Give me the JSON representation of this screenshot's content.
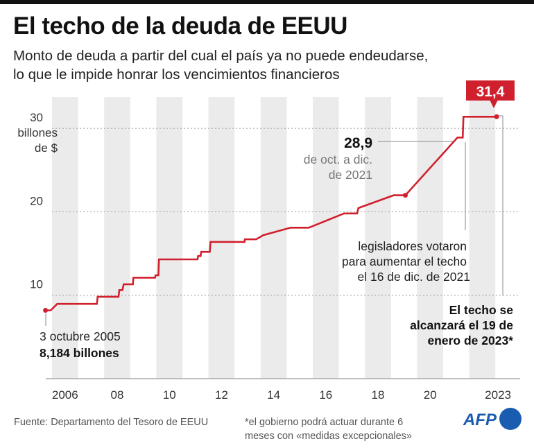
{
  "header": {
    "title": "El techo de la deuda de EEUU",
    "subtitle_line1": "Monto de deuda a partir del cual el país ya no puede endeudarse,",
    "subtitle_line2": "lo que le impide honrar los vencimientos financieros"
  },
  "chart_data": {
    "type": "line",
    "ylabel_line1": "billones",
    "ylabel_line2": "de $",
    "ylim": [
      0,
      31.4
    ],
    "xlim": [
      2005.75,
      2023.05
    ],
    "y_ticks": [
      {
        "value": 10,
        "label": "10"
      },
      {
        "value": 20,
        "label": "20"
      },
      {
        "value": 30,
        "label": "30"
      }
    ],
    "x_ticks": [
      {
        "value": 2006.5,
        "label": "2006"
      },
      {
        "value": 2008.5,
        "label": "08"
      },
      {
        "value": 2010.5,
        "label": "10"
      },
      {
        "value": 2012.5,
        "label": "12"
      },
      {
        "value": 2014.5,
        "label": "14"
      },
      {
        "value": 2016.5,
        "label": "16"
      },
      {
        "value": 2018.5,
        "label": "18"
      },
      {
        "value": 2020.5,
        "label": "20"
      },
      {
        "value": 2023.05,
        "label": "2023"
      }
    ],
    "shaded_years": [
      2006,
      2008,
      2010,
      2012,
      2014,
      2016,
      2018,
      2020,
      2022
    ],
    "grid": "horizontal dotted",
    "line_color": "#d0202e",
    "points": [
      [
        2005.75,
        8.184
      ],
      [
        2005.95,
        8.184
      ],
      [
        2006.2,
        8.965
      ],
      [
        2007.72,
        8.965
      ],
      [
        2007.75,
        9.815
      ],
      [
        2008.55,
        9.815
      ],
      [
        2008.58,
        10.615
      ],
      [
        2008.7,
        10.615
      ],
      [
        2008.75,
        11.315
      ],
      [
        2009.1,
        11.315
      ],
      [
        2009.12,
        12.104
      ],
      [
        2009.95,
        12.104
      ],
      [
        2009.97,
        12.394
      ],
      [
        2010.08,
        12.394
      ],
      [
        2010.1,
        14.294
      ],
      [
        2011.58,
        14.294
      ],
      [
        2011.6,
        14.694
      ],
      [
        2011.7,
        14.694
      ],
      [
        2011.72,
        15.194
      ],
      [
        2012.05,
        15.194
      ],
      [
        2012.08,
        16.394
      ],
      [
        2013.38,
        16.394
      ],
      [
        2013.4,
        16.7
      ],
      [
        2013.83,
        16.7
      ],
      [
        2014.1,
        17.2
      ],
      [
        2015.15,
        18.1
      ],
      [
        2015.85,
        18.1
      ],
      [
        2017.2,
        19.8
      ],
      [
        2017.7,
        19.8
      ],
      [
        2017.75,
        20.45
      ],
      [
        2019.1,
        21.98
      ],
      [
        2019.55,
        21.98
      ],
      [
        2021.55,
        28.9
      ],
      [
        2021.75,
        28.9
      ],
      [
        2021.78,
        31.4
      ],
      [
        2023.05,
        31.4
      ]
    ],
    "annotations": {
      "start_date": "3 octubre 2005",
      "start_value": "8,184 billones",
      "mid_value": "28,9",
      "mid_line1": "de oct. a dic.",
      "mid_line2": "de 2021",
      "vote_line1": "legisladores votaron",
      "vote_line2": "para aumentar el techo",
      "vote_line3": "el 16 de dic. de 2021",
      "end_value": "31,4",
      "end_line1": "El techo se",
      "end_line2": "alcanzará el 19 de",
      "end_line3": "enero de 2023*"
    }
  },
  "footer": {
    "source": "Fuente: Departamento del Tesoro de EEUU",
    "note_line1": "*el gobierno podrá actuar durante 6",
    "note_line2": "meses con «medidas excepcionales»",
    "logo": "AFP",
    "logo_color": "#1a5cb0"
  }
}
